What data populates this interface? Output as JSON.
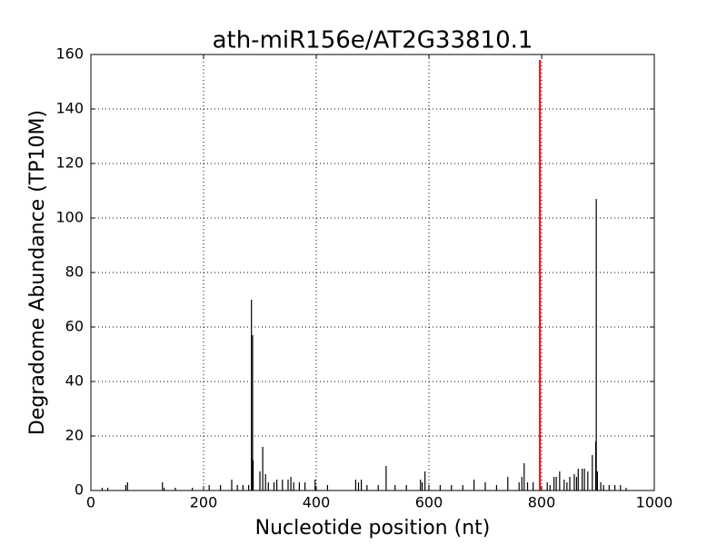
{
  "chart_data": {
    "type": "spike",
    "title": "ath-miR156e/AT2G33810.1",
    "x_label": "Nucleotide position (nt)",
    "y_label": "Degradome Abundance (TP10M)",
    "xlim": [
      0,
      1000
    ],
    "xticks": [
      0,
      200,
      400,
      600,
      800,
      1000
    ],
    "ylim": [
      0,
      160
    ],
    "yticks": [
      0,
      20,
      40,
      60,
      80,
      100,
      120,
      140,
      160
    ],
    "grid": true,
    "series": [
      {
        "color": "#000000",
        "x": [
          20,
          30,
          62,
          65,
          127,
          130,
          150,
          180,
          210,
          230,
          250,
          260,
          270,
          280,
          285,
          286,
          287,
          288,
          300,
          305,
          310,
          315,
          325,
          330,
          340,
          350,
          355,
          360,
          370,
          380,
          398,
          420,
          470,
          475,
          480,
          490,
          510,
          524,
          540,
          560,
          585,
          588,
          593,
          600,
          620,
          640,
          660,
          680,
          700,
          720,
          740,
          760,
          765,
          769,
          775,
          785,
          810,
          815,
          822,
          826,
          832,
          840,
          845,
          850,
          858,
          862,
          865,
          872,
          876,
          882,
          890,
          896,
          897,
          899,
          905,
          910,
          920,
          930,
          940,
          950
        ],
        "values": [
          1,
          1,
          2,
          3,
          3,
          1,
          1,
          1,
          2,
          2,
          4,
          2,
          2,
          2,
          70,
          12,
          57,
          11,
          7,
          16,
          6,
          3,
          3,
          4,
          4,
          4,
          5,
          3,
          3,
          3,
          4,
          2,
          4,
          3,
          4,
          2,
          2,
          9,
          2,
          2,
          4,
          3,
          7,
          2,
          2,
          2,
          2,
          4,
          3,
          2,
          5,
          3,
          5,
          10,
          3,
          3,
          3,
          2,
          5,
          5,
          7,
          4,
          3,
          5,
          6,
          5,
          8,
          8,
          8,
          7,
          13,
          18,
          107,
          7,
          3,
          2,
          2,
          2,
          2,
          1
        ]
      },
      {
        "color": "#ff0000",
        "x": [
          797
        ],
        "values": [
          158
        ]
      }
    ]
  }
}
